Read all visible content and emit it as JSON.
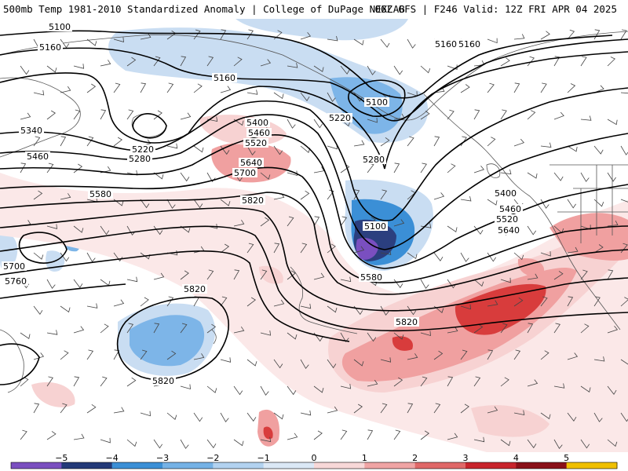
{
  "header": {
    "left": "500mb Temp 1981-2010 Standardized Anomaly | College of DuPage NEXLAB",
    "right": "06Z GFS | F246 Valid: 12Z FRI APR 04 2025"
  },
  "contours": {
    "labels": [
      "5100",
      "5160",
      "5100",
      "5160",
      "5160",
      "5340",
      "5220",
      "5280",
      "5460",
      "5580",
      "5400",
      "5460",
      "5520",
      "5640",
      "5700",
      "5820",
      "5220",
      "5100",
      "5280",
      "5400",
      "5460",
      "5520",
      "5640",
      "5400",
      "5580",
      "5700",
      "5760",
      "5820",
      "5820",
      "5820",
      "5160"
    ]
  },
  "colorbar": {
    "ticks": [
      "−5",
      "−4",
      "−3",
      "−2",
      "−1",
      "0",
      "1",
      "2",
      "3",
      "4",
      "5"
    ],
    "colors": [
      "#7a4fc0",
      "#243a78",
      "#3b8fd6",
      "#75b2e6",
      "#b2d2f0",
      "#dbe8f6",
      "#f8d8d8",
      "#f0a4a4",
      "#e06868",
      "#c8242c",
      "#8a1018",
      "#f0c000"
    ]
  },
  "anomaly_palette": {
    "neg5": "#7a4fc0",
    "neg4": "#2b3f7f",
    "neg3": "#3b8fd6",
    "neg2": "#7db5e8",
    "neg1": "#c9ddf2",
    "pos1": "#f7d2d2",
    "pos2": "#f0a0a0",
    "pos3": "#d83c3c",
    "pos4": "#a8141c"
  }
}
